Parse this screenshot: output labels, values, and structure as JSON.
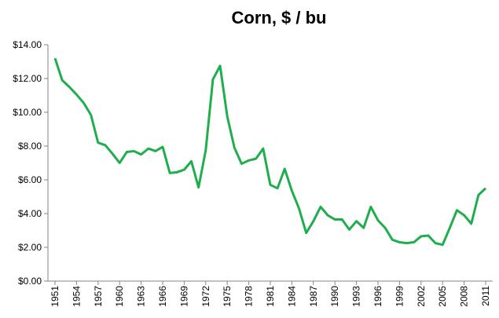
{
  "chart_data": {
    "type": "line",
    "title": "Corn, $ / bu",
    "x": [
      1951,
      1952,
      1953,
      1954,
      1955,
      1956,
      1957,
      1958,
      1959,
      1960,
      1961,
      1962,
      1963,
      1964,
      1965,
      1966,
      1967,
      1968,
      1969,
      1970,
      1971,
      1972,
      1973,
      1974,
      1975,
      1976,
      1977,
      1978,
      1979,
      1980,
      1981,
      1982,
      1983,
      1984,
      1985,
      1986,
      1987,
      1988,
      1989,
      1990,
      1991,
      1992,
      1993,
      1994,
      1995,
      1996,
      1997,
      1998,
      1999,
      2000,
      2001,
      2002,
      2003,
      2004,
      2005,
      2006,
      2007,
      2008,
      2009,
      2010,
      2011
    ],
    "series": [
      {
        "color": "#1fae4d",
        "values": [
          13.2,
          11.9,
          11.5,
          11.05,
          10.55,
          9.85,
          8.2,
          8.05,
          7.55,
          7.0,
          7.65,
          7.7,
          7.5,
          7.85,
          7.7,
          7.95,
          6.4,
          6.45,
          6.6,
          7.1,
          5.55,
          7.75,
          11.95,
          12.75,
          9.75,
          7.9,
          6.95,
          7.15,
          7.25,
          7.85,
          5.7,
          5.5,
          6.65,
          5.35,
          4.3,
          2.85,
          3.55,
          4.4,
          3.9,
          3.65,
          3.65,
          3.05,
          3.55,
          3.15,
          4.4,
          3.6,
          3.15,
          2.45,
          2.3,
          2.25,
          2.3,
          2.65,
          2.7,
          2.25,
          2.15,
          3.15,
          4.2,
          3.9,
          3.4,
          5.1,
          5.5
        ]
      }
    ],
    "xlim": [
      1951,
      2011
    ],
    "xticks": [
      1951,
      1954,
      1957,
      1960,
      1963,
      1966,
      1969,
      1972,
      1975,
      1978,
      1981,
      1984,
      1987,
      1990,
      1993,
      1996,
      1999,
      2002,
      2005,
      2008,
      2011
    ],
    "ylim": [
      0,
      14
    ],
    "yticks": [
      {
        "value": 0,
        "label": "$0.00"
      },
      {
        "value": 2,
        "label": "$2.00"
      },
      {
        "value": 4,
        "label": "$4.00"
      },
      {
        "value": 6,
        "label": "$6.00"
      },
      {
        "value": 8,
        "label": "$8.00"
      },
      {
        "value": 10,
        "label": "$10.00"
      },
      {
        "value": 12,
        "label": "$12.00"
      },
      {
        "value": 14,
        "label": "$14.00"
      }
    ],
    "grid": false
  }
}
